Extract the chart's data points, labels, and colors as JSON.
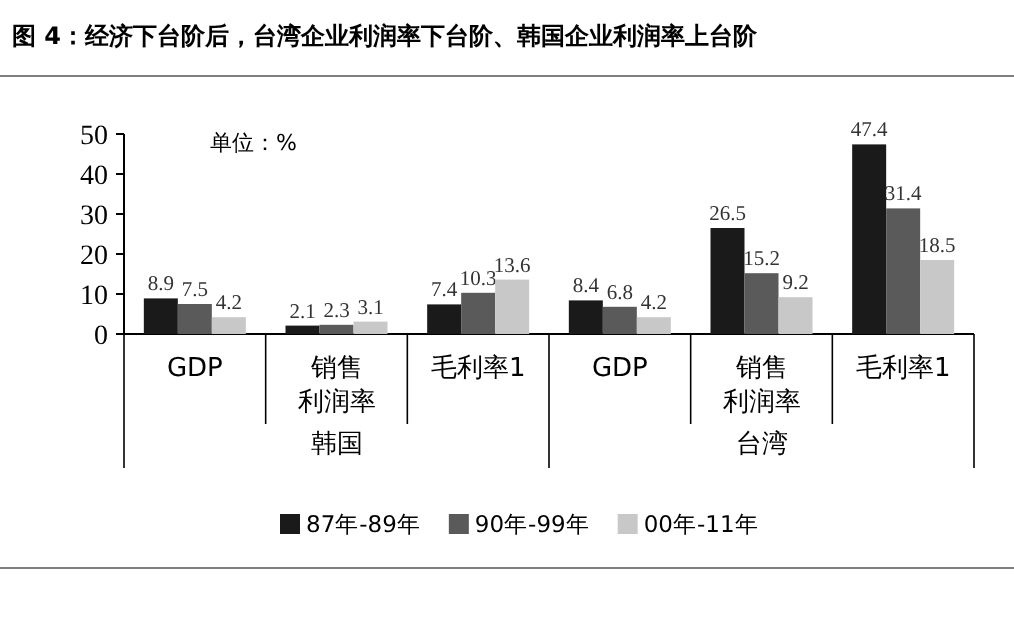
{
  "chart_data": {
    "type": "bar",
    "title": "图 4：经济下台阶后，台湾企业利润率下台阶、韩国企业利润率上台阶",
    "categories": [
      "GDP",
      "销售利润率",
      "毛利率1",
      "GDP",
      "销售利润率",
      "毛利率1"
    ],
    "series": [
      {
        "name": "87年-89年",
        "color": "#1a1a1a",
        "values": [
          8.9,
          2.1,
          7.4,
          8.4,
          26.5,
          47.4
        ]
      },
      {
        "name": "90年-99年",
        "color": "#5a5a5a",
        "values": [
          7.5,
          2.3,
          10.3,
          6.8,
          15.2,
          31.4
        ]
      },
      {
        "name": "00年-11年",
        "color": "#c8c8c8",
        "values": [
          4.2,
          3.1,
          13.6,
          4.2,
          9.2,
          18.5
        ]
      }
    ],
    "ylim": [
      0,
      50
    ],
    "yticks": [
      0,
      10,
      20,
      30,
      40,
      50
    ],
    "data_labels": true,
    "legend": "bottom",
    "grid": false,
    "annotations": [
      "单位：%",
      "韩国",
      "台湾"
    ]
  }
}
